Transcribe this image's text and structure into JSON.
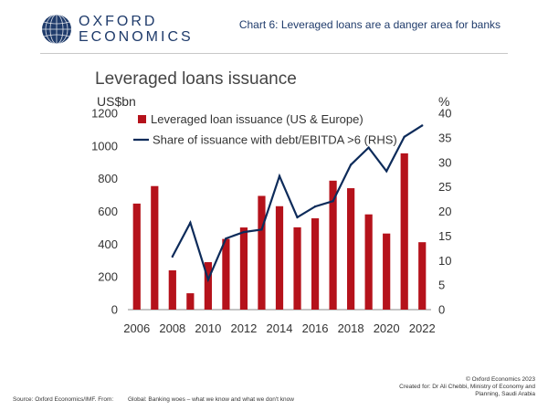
{
  "header": {
    "logo_line1": "OXFORD",
    "logo_line2": "ECONOMICS",
    "caption": "Chart 6: Leveraged loans are a danger area for banks"
  },
  "colors": {
    "bar": "#b5121b",
    "line": "#0d2b5a",
    "brand": "#1f3b6b"
  },
  "chart_data": {
    "type": "bar",
    "title": "Leveraged loans issuance",
    "ylabel_left": "US$bn",
    "ylabel_right": "%",
    "ylim_left": [
      0,
      1200
    ],
    "ylim_right": [
      0,
      40
    ],
    "yticks_left": [
      "0",
      "200",
      "400",
      "600",
      "800",
      "1000",
      "1200"
    ],
    "yticks_right": [
      "0",
      "5",
      "10",
      "15",
      "20",
      "25",
      "30",
      "35",
      "40"
    ],
    "x_tick_labels": [
      "2006",
      "2008",
      "2010",
      "2012",
      "2014",
      "2016",
      "2018",
      "2020",
      "2022"
    ],
    "categories": [
      2006,
      2007,
      2008,
      2009,
      2010,
      2011,
      2012,
      2013,
      2014,
      2015,
      2016,
      2017,
      2018,
      2019,
      2020,
      2021,
      2022
    ],
    "legend_position": "top-left",
    "series": [
      {
        "name": "Leveraged loan issuance (US & Europe)",
        "type": "bar",
        "axis": "left",
        "values": [
          648,
          755,
          240,
          100,
          290,
          432,
          502,
          695,
          632,
          503,
          558,
          788,
          742,
          582,
          465,
          955,
          412
        ]
      },
      {
        "name": "Share of issuance with debt/EBITDA >6 (RHS)",
        "type": "line",
        "axis": "right",
        "values": [
          null,
          null,
          10.8,
          17.7,
          6.1,
          14.5,
          15.8,
          16.3,
          27.2,
          18.8,
          21.0,
          22.1,
          29.5,
          33.0,
          28.2,
          35.2,
          37.5
        ]
      }
    ]
  },
  "footer": {
    "source": "Source: Oxford Economics/IMF.",
    "from_label": "From:",
    "from_text": "Global: Banking woes – what we know and what we don't know",
    "copyright": "© Oxford Economics 2023",
    "created_for_1": "Created for: Dr Ali Chebbi, Ministry of Economy and",
    "created_for_2": "Planning, Saudi Arabia"
  }
}
